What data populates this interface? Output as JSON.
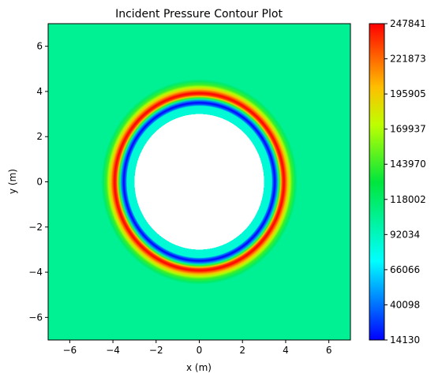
{
  "chart_data": {
    "type": "contour",
    "title": "Incident Pressure Contour Plot",
    "xlabel": "x (m)",
    "ylabel": "y (m)",
    "xlim": [
      -7,
      7
    ],
    "ylim": [
      -7,
      7
    ],
    "xticks": [
      -6,
      -4,
      -2,
      0,
      2,
      4,
      6
    ],
    "yticks": [
      -6,
      -4,
      -2,
      0,
      2,
      4,
      6
    ],
    "tick_labels": [
      "−6",
      "−4",
      "−2",
      "0",
      "2",
      "4",
      "6"
    ],
    "colormap": "hsv-style (blue to red)",
    "colorbar": {
      "min": 14130,
      "max": 247841,
      "ticks": [
        14130,
        40098,
        66066,
        92034,
        118002,
        143970,
        169937,
        195905,
        221873,
        247841
      ]
    },
    "background_value": 105000,
    "blank_region": {
      "shape": "circle",
      "center": [
        0,
        0
      ],
      "radius": 3.0
    },
    "radial_profile": [
      {
        "r": 3.0,
        "p": 85000
      },
      {
        "r": 3.35,
        "p": 85000
      },
      {
        "r": 3.4,
        "p": 40098
      },
      {
        "r": 3.5,
        "p": 14130
      },
      {
        "r": 3.58,
        "p": 40098
      },
      {
        "r": 3.66,
        "p": 100000
      },
      {
        "r": 3.72,
        "p": 143970
      },
      {
        "r": 3.78,
        "p": 195905
      },
      {
        "r": 3.85,
        "p": 235000
      },
      {
        "r": 3.93,
        "p": 247841
      },
      {
        "r": 4.02,
        "p": 221873
      },
      {
        "r": 4.1,
        "p": 195905
      },
      {
        "r": 4.2,
        "p": 169937
      },
      {
        "r": 4.3,
        "p": 143970
      },
      {
        "r": 4.45,
        "p": 118002
      },
      {
        "r": 4.55,
        "p": 105000
      },
      {
        "r": 9.9,
        "p": 105000
      }
    ]
  }
}
